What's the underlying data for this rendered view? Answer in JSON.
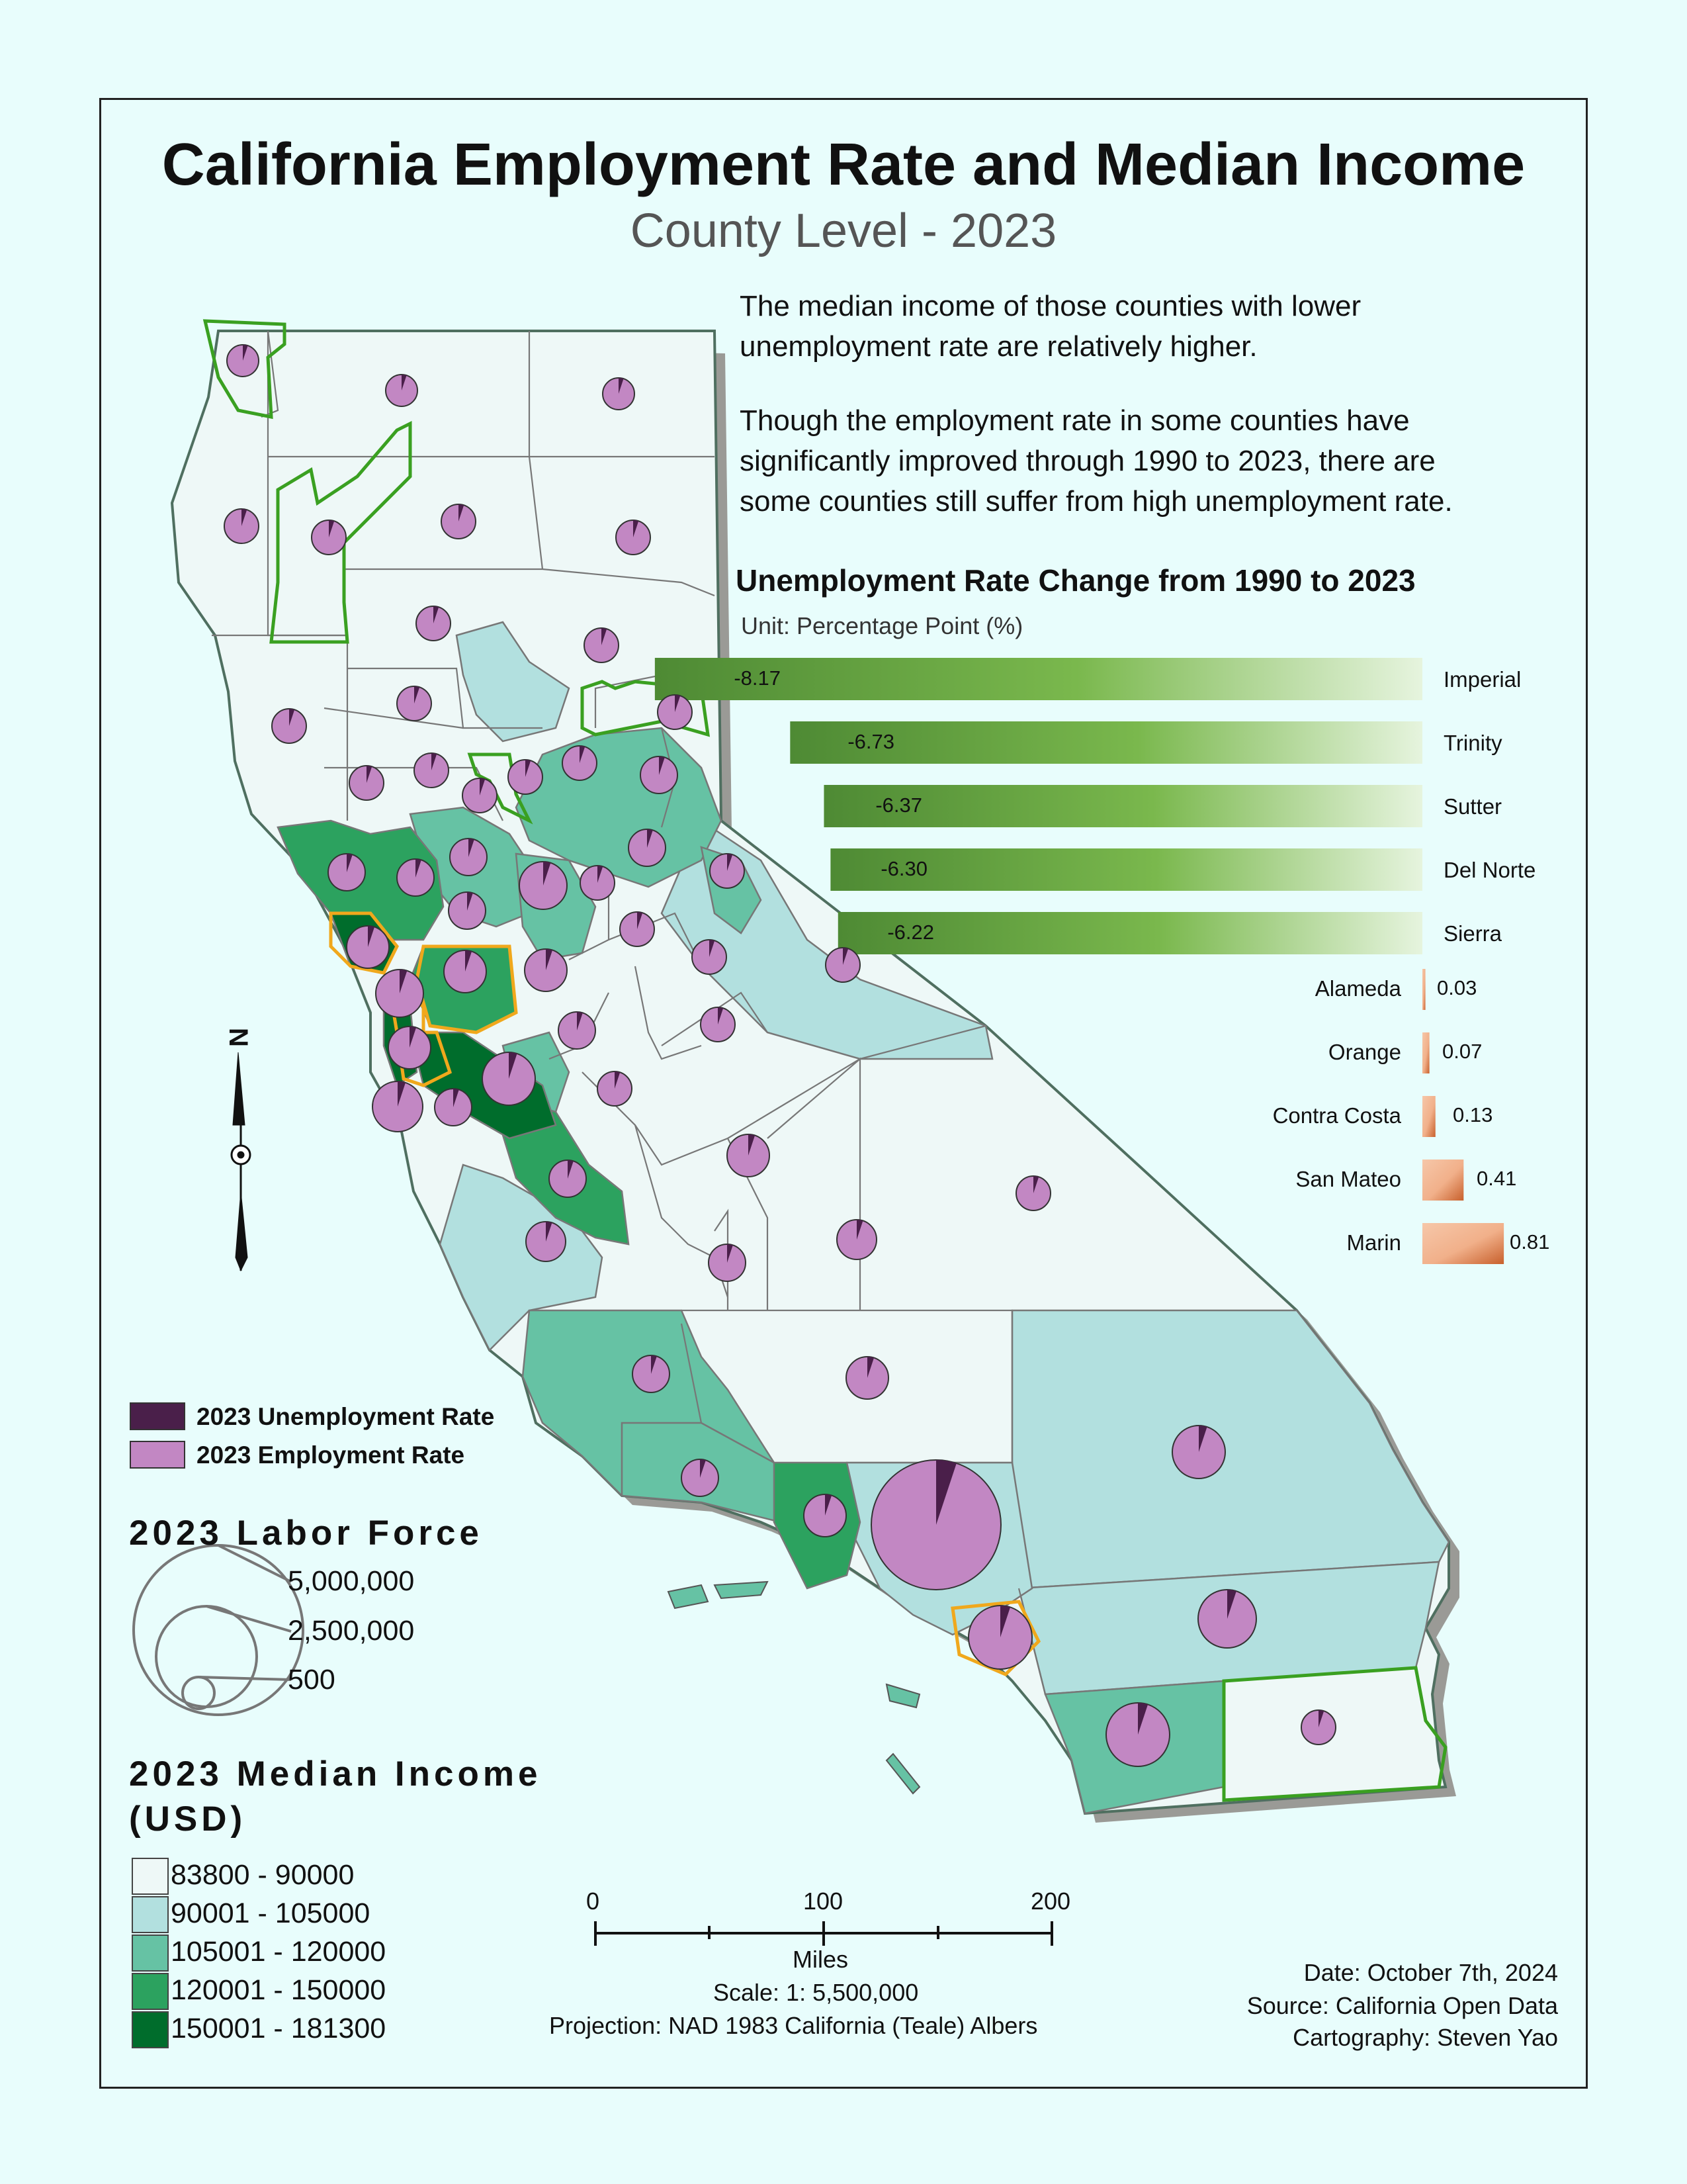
{
  "title": "California Employment Rate and Median Income",
  "subtitle": "County Level - 2023",
  "description": [
    "The median income of those counties with lower",
    "unemployment rate are relatively higher.",
    "Though the employment rate in some counties have",
    "significantly improved through 1990 to 2023, there are",
    "some counties still suffer from high unemployment rate."
  ],
  "bar_chart": {
    "title": "Unemployment Rate Change from 1990 to 2023",
    "unit": "Unit: Percentage Point (%)",
    "decreases": [
      {
        "county": "Imperial",
        "value": "-8.17",
        "num": -8.17
      },
      {
        "county": "Trinity",
        "value": "-6.73",
        "num": -6.73
      },
      {
        "county": "Sutter",
        "value": "-6.37",
        "num": -6.37
      },
      {
        "county": "Del Norte",
        "value": "-6.30",
        "num": -6.3
      },
      {
        "county": "Sierra",
        "value": "-6.22",
        "num": -6.22
      }
    ],
    "increases": [
      {
        "county": "Alameda",
        "value": "0.03",
        "num": 0.03
      },
      {
        "county": "Orange",
        "value": "0.07",
        "num": 0.07
      },
      {
        "county": "Contra Costa",
        "value": "0.13",
        "num": 0.13
      },
      {
        "county": "San Mateo",
        "value": "0.41",
        "num": 0.41
      },
      {
        "county": "Marin",
        "value": "0.81",
        "num": 0.81
      }
    ],
    "colors": {
      "decrease_dark": "#4e8a34",
      "decrease_mid": "#7ab84d",
      "decrease_light": "#e6f4de",
      "increase_dark": "#c8602c",
      "increase_light": "#f6c7a9"
    }
  },
  "pie_legend": {
    "unemployment": "2023 Unemployment Rate",
    "employment": "2023 Employment Rate",
    "unemployment_color": "#4a1f4a",
    "employment_color": "#c287c3"
  },
  "labor_force": {
    "title": "2023 Labor Force",
    "labels": [
      "5,000,000",
      "2,500,000",
      "500"
    ]
  },
  "median_income": {
    "title_line1": "2023 Median Income",
    "title_line2": "(USD)",
    "classes": [
      {
        "label": "83800 - 90000",
        "color": "#eef8f7"
      },
      {
        "label": "90001 - 105000",
        "color": "#b2e0df"
      },
      {
        "label": "105001 - 120000",
        "color": "#66c2a4"
      },
      {
        "label": "120001 - 150000",
        "color": "#2ca25f"
      },
      {
        "label": "150001 - 181300",
        "color": "#006d2c"
      }
    ]
  },
  "scale_bar": {
    "ticks": [
      "0",
      "100",
      "200"
    ],
    "unit": "Miles",
    "scale": "Scale: 1: 5,500,000",
    "projection": "Projection: NAD 1983 California (Teale) Albers"
  },
  "credits": {
    "date": "Date: October 7th, 2024",
    "source": "Source: California Open Data",
    "cartography": "Cartography: Steven Yao"
  },
  "north_arrow": {
    "label": "N"
  },
  "map_colors": {
    "outline_highlight_green": "#3aa021",
    "outline_highlight_orange": "#f0a81c",
    "border": "#777777",
    "shadow": "#9a9a96"
  }
}
